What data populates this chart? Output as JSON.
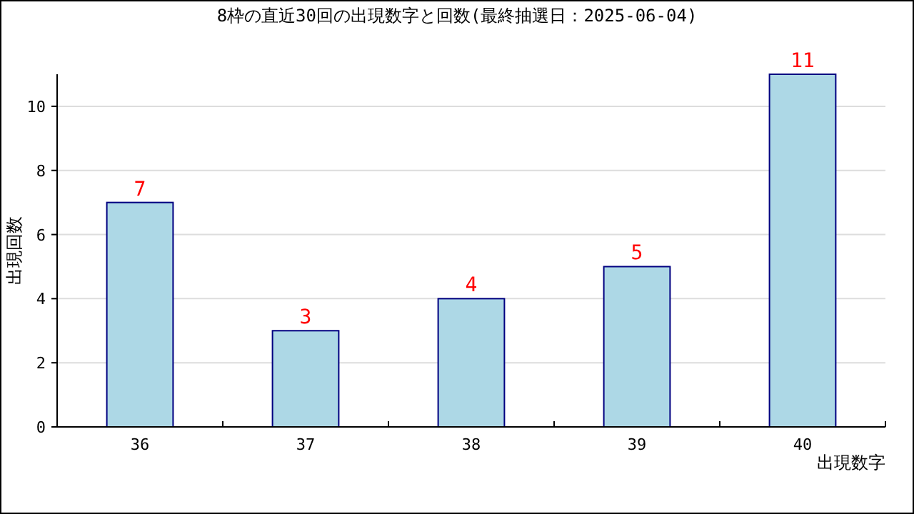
{
  "chart_data": {
    "type": "bar",
    "title": "8枠の直近30回の出現数字と回数(最終抽選日：2025-06-04)",
    "xlabel": "出現数字",
    "ylabel": "出現回数",
    "categories": [
      "36",
      "37",
      "38",
      "39",
      "40"
    ],
    "values": [
      7,
      3,
      4,
      5,
      11
    ],
    "color": "#add8e6",
    "ylim": [
      0,
      11
    ],
    "yticks": [
      0,
      2,
      4,
      6,
      8,
      10
    ],
    "grid": "y",
    "data_labels": true
  }
}
